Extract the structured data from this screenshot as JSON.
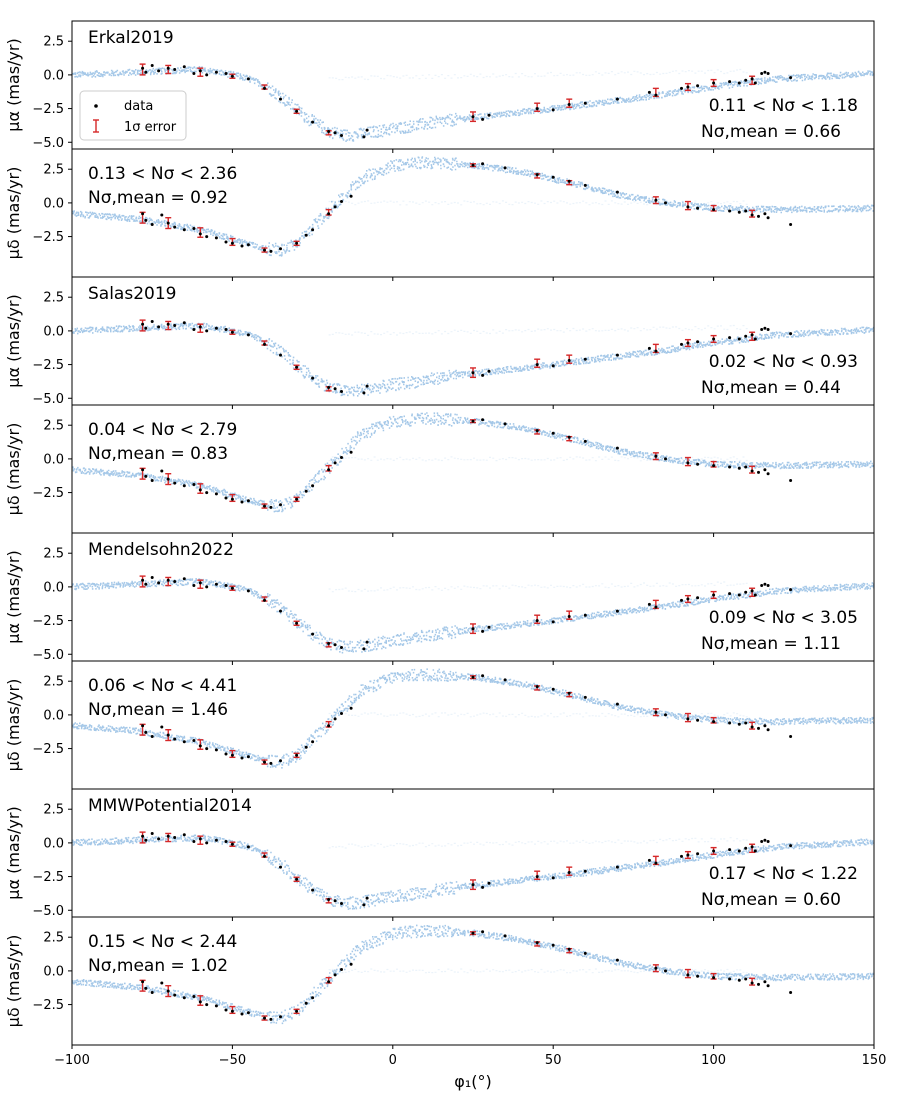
{
  "chart_data": {
    "type": "scatter",
    "x_range": [
      -100,
      150
    ],
    "x_ticks": [
      -100,
      -50,
      0,
      50,
      100,
      150
    ],
    "x_tick_labels": [
      "−100",
      "−50",
      "0",
      "50",
      "100",
      "150"
    ],
    "x_label": "φ₁(°)",
    "y_range": [
      -5.5,
      4
    ],
    "y_ticks": [
      2.5,
      0.0,
      -2.5,
      -5.0
    ],
    "y_tick_labels": [
      "2.5",
      "0.0",
      "−2.5",
      "−5.0"
    ],
    "y_label_alpha": "μα (mas/yr)",
    "y_label_delta": "μδ (mas/yr)",
    "legend": {
      "position": "lower-left of top panel",
      "entries": [
        "data",
        "1σ error"
      ]
    },
    "colors": {
      "stream_model": "#5b9bd5",
      "data": "#000000",
      "error_bar": "#d62728"
    },
    "models": [
      {
        "name": "Erkal2019",
        "alpha_stats": {
          "range": "0.11 < Nσ < 1.18",
          "mean": "Nσ,mean = 0.66"
        },
        "delta_stats": {
          "range": "0.13 < Nσ < 2.36",
          "mean": "Nσ,mean = 0.92"
        }
      },
      {
        "name": "Salas2019",
        "alpha_stats": {
          "range": "0.02 < Nσ < 0.93",
          "mean": "Nσ,mean = 0.44"
        },
        "delta_stats": {
          "range": "0.04 < Nσ < 2.79",
          "mean": "Nσ,mean = 0.83"
        }
      },
      {
        "name": "Mendelsohn2022",
        "alpha_stats": {
          "range": "0.09 < Nσ < 3.05",
          "mean": "Nσ,mean = 1.11"
        },
        "delta_stats": {
          "range": "0.06 < Nσ < 4.41",
          "mean": "Nσ,mean = 1.46"
        }
      },
      {
        "name": "MMWPotential2014",
        "alpha_stats": {
          "range": "0.17 < Nσ < 1.22",
          "mean": "Nσ,mean = 0.60"
        },
        "delta_stats": {
          "range": "0.15 < Nσ < 2.44",
          "mean": "Nσ,mean = 1.02"
        }
      }
    ],
    "model_curves": {
      "mu_alpha": [
        [
          -100,
          0.0
        ],
        [
          -80,
          0.2
        ],
        [
          -60,
          0.4
        ],
        [
          -50,
          0.0
        ],
        [
          -45,
          -0.3
        ],
        [
          -40,
          -0.8
        ],
        [
          -35,
          -1.6
        ],
        [
          -30,
          -2.6
        ],
        [
          -25,
          -3.5
        ],
        [
          -20,
          -4.2
        ],
        [
          -15,
          -4.5
        ],
        [
          -10,
          -4.4
        ],
        [
          0,
          -4.0
        ],
        [
          20,
          -3.3
        ],
        [
          50,
          -2.5
        ],
        [
          80,
          -1.6
        ],
        [
          100,
          -0.9
        ],
        [
          120,
          -0.3
        ],
        [
          150,
          0.1
        ]
      ],
      "mu_delta": [
        [
          -100,
          -0.8
        ],
        [
          -80,
          -1.2
        ],
        [
          -60,
          -2.0
        ],
        [
          -50,
          -2.7
        ],
        [
          -40,
          -3.4
        ],
        [
          -35,
          -3.5
        ],
        [
          -30,
          -3.0
        ],
        [
          -25,
          -1.8
        ],
        [
          -20,
          -0.6
        ],
        [
          -10,
          1.8
        ],
        [
          0,
          2.8
        ],
        [
          10,
          3.0
        ],
        [
          25,
          2.8
        ],
        [
          40,
          2.3
        ],
        [
          55,
          1.5
        ],
        [
          70,
          0.6
        ],
        [
          85,
          0.0
        ],
        [
          100,
          -0.4
        ],
        [
          120,
          -0.5
        ],
        [
          150,
          -0.4
        ]
      ]
    },
    "data_mu_alpha": [
      [
        -78,
        0.5
      ],
      [
        -77,
        0.2
      ],
      [
        -75,
        0.7
      ],
      [
        -73,
        0.3
      ],
      [
        -70,
        0.5
      ],
      [
        -68,
        0.4
      ],
      [
        -65,
        0.6
      ],
      [
        -62,
        0.1
      ],
      [
        -60,
        0.3
      ],
      [
        -58,
        0.0
      ],
      [
        -55,
        0.2
      ],
      [
        -52,
        0.1
      ],
      [
        -50,
        -0.1
      ],
      [
        -45,
        -0.3
      ],
      [
        -40,
        -1.0
      ],
      [
        -35,
        -1.8
      ],
      [
        -30,
        -2.7
      ],
      [
        -25,
        -3.5
      ],
      [
        -20,
        -4.2
      ],
      [
        -18,
        -4.3
      ],
      [
        -16,
        -4.5
      ],
      [
        -9,
        -4.6
      ],
      [
        -8,
        -4.1
      ],
      [
        25,
        -3.1
      ],
      [
        28,
        -3.3
      ],
      [
        30,
        -3.0
      ],
      [
        45,
        -2.5
      ],
      [
        50,
        -2.6
      ],
      [
        55,
        -2.2
      ],
      [
        60,
        -2.1
      ],
      [
        70,
        -1.8
      ],
      [
        80,
        -1.3
      ],
      [
        82,
        -1.5
      ],
      [
        90,
        -1.0
      ],
      [
        92,
        -0.9
      ],
      [
        95,
        -0.8
      ],
      [
        100,
        -0.6
      ],
      [
        105,
        -0.5
      ],
      [
        108,
        -0.6
      ],
      [
        110,
        -0.4
      ],
      [
        112,
        -0.3
      ],
      [
        113,
        -0.6
      ],
      [
        115,
        0.1
      ],
      [
        116,
        0.2
      ],
      [
        117,
        0.1
      ],
      [
        124,
        -0.2
      ]
    ],
    "data_mu_delta": [
      [
        -78,
        -0.8
      ],
      [
        -77,
        -1.3
      ],
      [
        -75,
        -1.6
      ],
      [
        -72,
        -0.9
      ],
      [
        -70,
        -1.5
      ],
      [
        -68,
        -1.8
      ],
      [
        -65,
        -2.0
      ],
      [
        -62,
        -1.9
      ],
      [
        -60,
        -2.3
      ],
      [
        -58,
        -2.5
      ],
      [
        -55,
        -2.6
      ],
      [
        -52,
        -2.9
      ],
      [
        -50,
        -3.0
      ],
      [
        -47,
        -3.2
      ],
      [
        -45,
        -3.1
      ],
      [
        -40,
        -3.5
      ],
      [
        -38,
        -3.6
      ],
      [
        -35,
        -3.4
      ],
      [
        -30,
        -3.0
      ],
      [
        -27,
        -2.4
      ],
      [
        -25,
        -2.0
      ],
      [
        -20,
        -0.8
      ],
      [
        -18,
        -0.3
      ],
      [
        -16,
        0.1
      ],
      [
        -13,
        0.5
      ],
      [
        25,
        2.8
      ],
      [
        28,
        2.9
      ],
      [
        35,
        2.6
      ],
      [
        45,
        2.1
      ],
      [
        50,
        1.9
      ],
      [
        55,
        1.6
      ],
      [
        60,
        1.3
      ],
      [
        70,
        0.8
      ],
      [
        82,
        0.2
      ],
      [
        85,
        0.0
      ],
      [
        92,
        -0.3
      ],
      [
        95,
        -0.4
      ],
      [
        100,
        -0.5
      ],
      [
        105,
        -0.6
      ],
      [
        108,
        -0.7
      ],
      [
        110,
        -0.6
      ],
      [
        112,
        -0.9
      ],
      [
        114,
        -1.0
      ],
      [
        116,
        -0.8
      ],
      [
        117,
        -1.1
      ],
      [
        124,
        -1.6
      ]
    ],
    "error_bars_mu_alpha": [
      [
        -78,
        0.4,
        0.4
      ],
      [
        -70,
        0.4,
        0.3
      ],
      [
        -60,
        0.2,
        0.3
      ],
      [
        -50,
        -0.1,
        0.15
      ],
      [
        -40,
        -0.9,
        0.15
      ],
      [
        -30,
        -2.7,
        0.15
      ],
      [
        -20,
        -4.3,
        0.15
      ],
      [
        25,
        -3.1,
        0.35
      ],
      [
        45,
        -2.4,
        0.3
      ],
      [
        55,
        -2.1,
        0.3
      ],
      [
        82,
        -1.3,
        0.3
      ],
      [
        92,
        -0.9,
        0.25
      ],
      [
        100,
        -0.6,
        0.25
      ],
      [
        112,
        -0.4,
        0.3
      ]
    ],
    "error_bars_mu_delta": [
      [
        -78,
        -1.1,
        0.4
      ],
      [
        -70,
        -1.5,
        0.4
      ],
      [
        -60,
        -2.2,
        0.35
      ],
      [
        -50,
        -2.9,
        0.25
      ],
      [
        -40,
        -3.5,
        0.15
      ],
      [
        -30,
        -3.0,
        0.15
      ],
      [
        -20,
        -0.7,
        0.2
      ],
      [
        25,
        2.8,
        0.1
      ],
      [
        45,
        2.0,
        0.15
      ],
      [
        55,
        1.5,
        0.15
      ],
      [
        82,
        0.2,
        0.25
      ],
      [
        92,
        -0.2,
        0.3
      ],
      [
        100,
        -0.4,
        0.2
      ],
      [
        112,
        -0.8,
        0.25
      ]
    ]
  }
}
